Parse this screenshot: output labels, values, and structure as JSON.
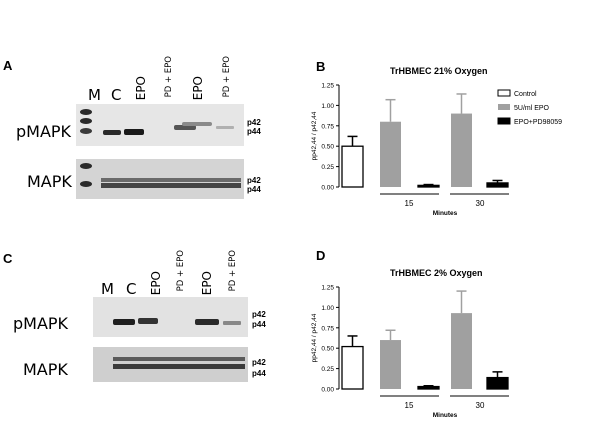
{
  "panels": {
    "A": {
      "letter": "A",
      "lanes": {
        "M": "M",
        "C": "C",
        "epo1": "EPO",
        "pdepo1": "PD + EPO",
        "epo2": "EPO",
        "pdepo2": "PD + EPO"
      },
      "rows": [
        {
          "label": "pMAPK",
          "p42": "p42",
          "p44": "p44"
        },
        {
          "label": "MAPK",
          "p42": "p42",
          "p44": "p44"
        }
      ]
    },
    "C": {
      "letter": "C",
      "lanes": {
        "M": "M",
        "C": "C",
        "epo1": "EPO",
        "pdepo1": "PD + EPO",
        "epo2": "EPO",
        "pdepo2": "PD + EPO"
      },
      "rows": [
        {
          "label": "pMAPK",
          "p42": "p42",
          "p44": "p44"
        },
        {
          "label": "MAPK",
          "p42": "p42",
          "p44": "p44"
        }
      ]
    },
    "B": {
      "letter": "B"
    },
    "D": {
      "letter": "D"
    }
  },
  "chart_data": [
    {
      "type": "bar",
      "title": "TrHBMEC 21% Oxygen",
      "xlabel": "Minutes",
      "ylabel": "pp42,44 / p42,44",
      "ylim": [
        0,
        1.25
      ],
      "yticks": [
        "0.00",
        "0.25",
        "0.50",
        "0.75",
        "1.00",
        "1.25"
      ],
      "groups": [
        "15",
        "30"
      ],
      "series": [
        {
          "name": "Control",
          "color": "#ffffff",
          "values": [
            0.5
          ],
          "errors": [
            0.12
          ]
        },
        {
          "name": "5U/ml EPO",
          "color": "#a0a0a0",
          "values": [
            0.8,
            0.9
          ],
          "errors": [
            0.27,
            0.24
          ]
        },
        {
          "name": "EPO+PD98059",
          "color": "#000000",
          "values": [
            0.02,
            0.05
          ],
          "errors": [
            0.01,
            0.03
          ]
        }
      ],
      "legend": [
        "Control",
        "5U/ml EPO",
        "EPO+PD98059"
      ]
    },
    {
      "type": "bar",
      "title": "TrHBMEC 2% Oxygen",
      "xlabel": "Minutes",
      "ylabel": "pp42,44 / p42,44",
      "ylim": [
        0,
        1.25
      ],
      "yticks": [
        "0.00",
        "0.25",
        "0.50",
        "0.75",
        "1.00",
        "1.25"
      ],
      "groups": [
        "15",
        "30"
      ],
      "series": [
        {
          "name": "Control",
          "color": "#ffffff",
          "values": [
            0.52
          ],
          "errors": [
            0.13
          ]
        },
        {
          "name": "5U/ml EPO",
          "color": "#a0a0a0",
          "values": [
            0.6,
            0.93
          ],
          "errors": [
            0.12,
            0.27
          ]
        },
        {
          "name": "EPO+PD98059",
          "color": "#000000",
          "values": [
            0.03,
            0.14
          ],
          "errors": [
            0.01,
            0.07
          ]
        }
      ]
    }
  ]
}
